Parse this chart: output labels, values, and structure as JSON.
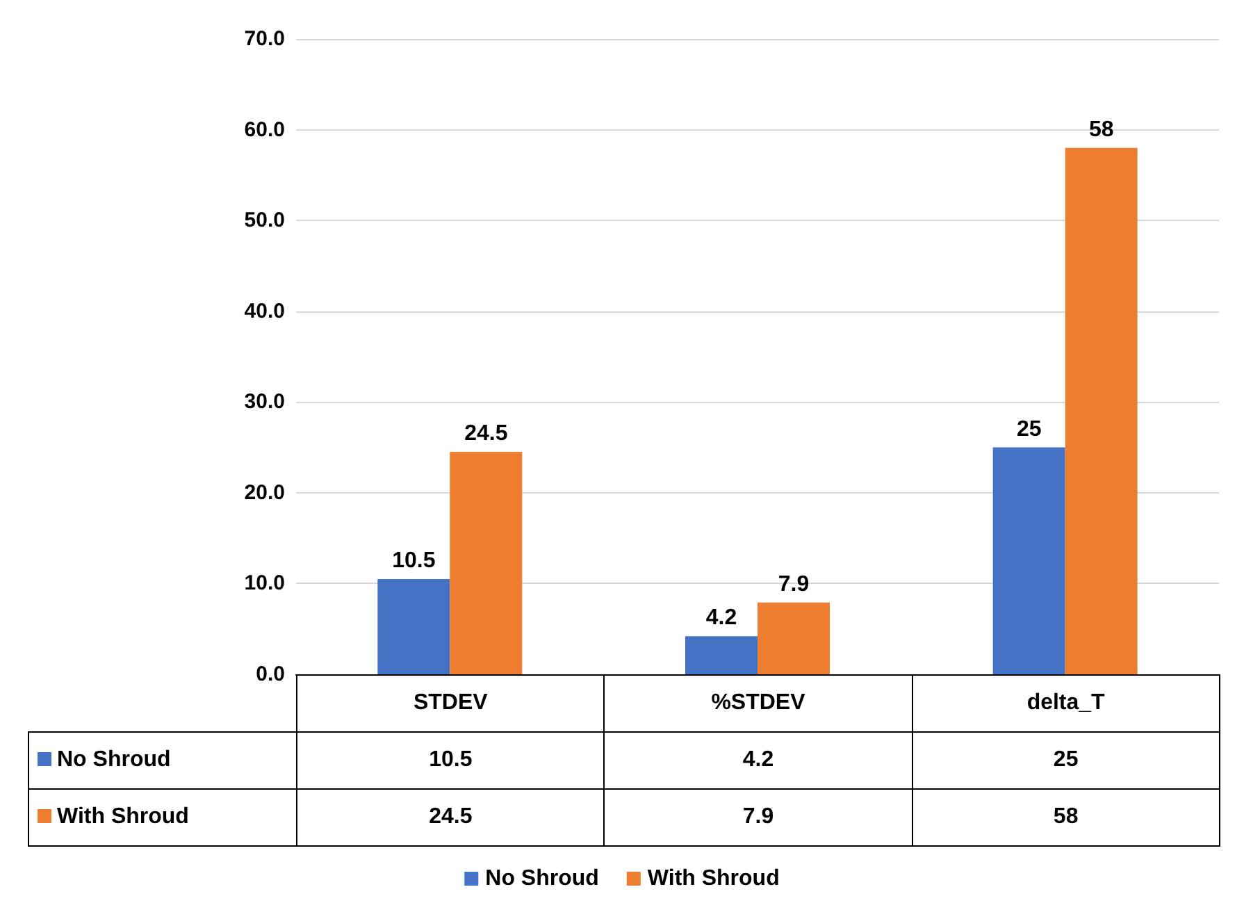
{
  "chart_data": {
    "type": "bar",
    "categories": [
      "STDEV",
      "%STDEV",
      "delta_T"
    ],
    "series": [
      {
        "name": "No Shroud",
        "color": "#4472c4",
        "values": [
          10.5,
          4.2,
          25
        ],
        "value_labels": [
          "10.5",
          "4.2",
          "25"
        ]
      },
      {
        "name": "With Shroud",
        "color": "#ed7d31",
        "values": [
          24.5,
          7.9,
          58
        ],
        "value_labels": [
          "24.5",
          "7.9",
          "58"
        ]
      }
    ],
    "ylim": [
      0,
      70
    ],
    "yticks": [
      {
        "value": 0,
        "label": "0.0"
      },
      {
        "value": 10,
        "label": "10.0"
      },
      {
        "value": 20,
        "label": "20.0"
      },
      {
        "value": 30,
        "label": "30.0"
      },
      {
        "value": 40,
        "label": "40.0"
      },
      {
        "value": 50,
        "label": "50.0"
      },
      {
        "value": 60,
        "label": "60.0"
      },
      {
        "value": 70,
        "label": "70.0"
      }
    ],
    "grid": "y",
    "legend": "bottom",
    "data_labels": true,
    "annotations": [
      "10.5",
      "4.2",
      "25",
      "24.5",
      "7.9",
      "58"
    ]
  }
}
